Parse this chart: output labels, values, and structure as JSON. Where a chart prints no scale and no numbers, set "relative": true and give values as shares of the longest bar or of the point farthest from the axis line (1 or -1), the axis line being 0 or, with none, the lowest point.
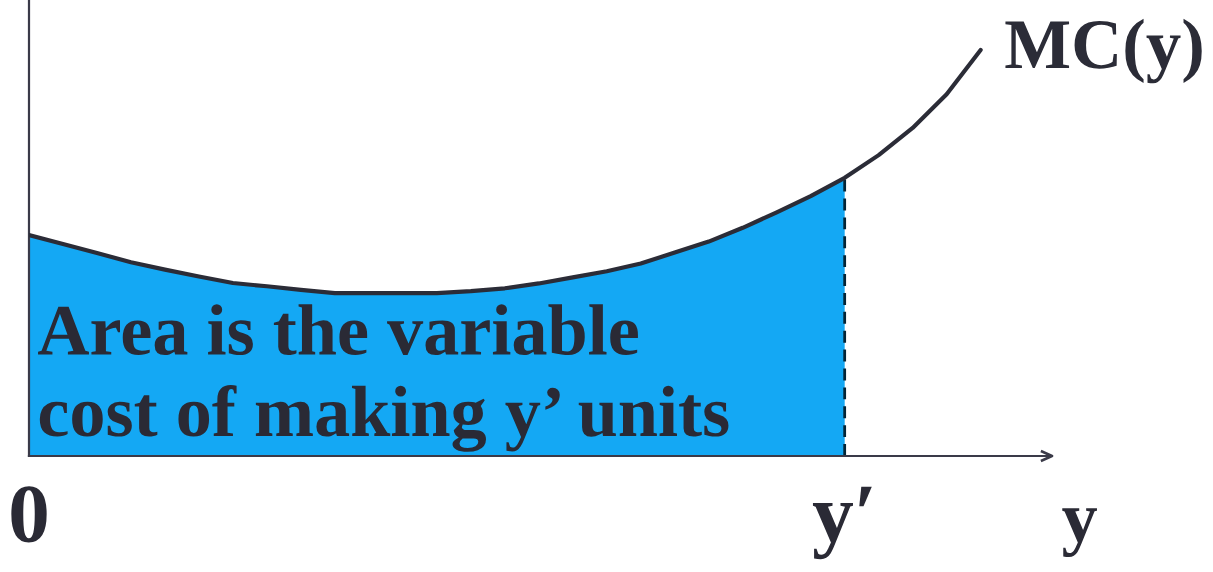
{
  "chart_data": {
    "type": "line",
    "relative": true,
    "xlabel": "y",
    "categories": [
      "0",
      null,
      null,
      null,
      null,
      null,
      null,
      null,
      null,
      null,
      null,
      null,
      null,
      null,
      null,
      null,
      null,
      null,
      null,
      null,
      null,
      null,
      null,
      null,
      "y′",
      null,
      null,
      null,
      null
    ],
    "series": [
      {
        "type": "area",
        "color": "#14a8f4",
        "line_style": "dashed",
        "values": [
          0.544,
          0.522,
          0.5,
          0.477,
          0.459,
          0.442,
          0.426,
          0.418,
          0.409,
          0.401,
          0.401,
          0.401,
          0.401,
          0.406,
          0.413,
          0.425,
          0.44,
          0.455,
          0.474,
          0.501,
          0.528,
          0.562,
          0.6,
          0.64,
          0.685,
          null,
          null,
          null,
          null
        ]
      },
      {
        "name": "MC(y)",
        "color": "#2b2c37",
        "line_style": "solid",
        "values": [
          0.544,
          0.522,
          0.5,
          0.477,
          0.459,
          0.442,
          0.426,
          0.418,
          0.409,
          0.401,
          0.401,
          0.401,
          0.401,
          0.406,
          0.413,
          0.425,
          0.44,
          0.455,
          0.474,
          0.501,
          0.528,
          0.562,
          0.6,
          0.64,
          0.685,
          0.741,
          0.808,
          0.891,
          1.0
        ]
      }
    ],
    "annotations": [
      "Area is the variable\ncost of making y’ units"
    ]
  }
}
